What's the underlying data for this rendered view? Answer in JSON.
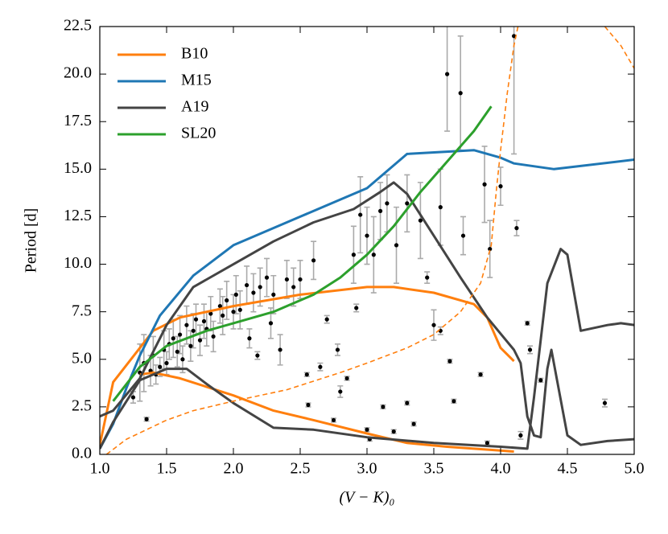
{
  "chart_data": {
    "type": "line",
    "xlabel": "(V − K)₀",
    "ylabel": "Period [d]",
    "xlim": [
      1.0,
      5.0
    ],
    "ylim": [
      0,
      22.5
    ],
    "xticks": [
      {
        "value": 1,
        "label": "1.0"
      },
      1.5,
      {
        "value": 2,
        "label": "2.0"
      },
      2.5,
      {
        "value": 3,
        "label": "3.0"
      },
      3.5,
      {
        "value": 4,
        "label": "4.0"
      },
      4.5,
      {
        "value": 5,
        "label": "5.0"
      }
    ],
    "yticks": [
      {
        "value": 0,
        "label": "0.0"
      },
      2.5,
      {
        "value": 5,
        "label": "5.0"
      },
      7.5,
      {
        "value": 10,
        "label": "10.0"
      },
      12.5,
      {
        "value": 15,
        "label": "15.0"
      },
      17.5,
      {
        "value": 20,
        "label": "20.0"
      },
      22.5
    ],
    "legend": "upper left",
    "series": [
      {
        "name": "B10",
        "color": "#ff7f0e",
        "x": [
          1.0,
          1.1,
          1.4,
          1.6,
          2.0,
          2.5,
          3.0,
          3.2,
          3.5,
          3.8,
          3.9,
          4.0,
          4.1,
          null,
          1.3,
          1.4,
          1.6,
          2.0,
          2.3,
          2.6,
          3.0,
          3.3,
          3.6,
          4.0,
          4.1
        ],
        "values": [
          0.5,
          3.8,
          6.5,
          7.2,
          7.8,
          8.4,
          8.8,
          8.8,
          8.5,
          7.9,
          7.2,
          5.6,
          4.9,
          null,
          4.2,
          4.3,
          4.0,
          3.1,
          2.3,
          1.8,
          1.1,
          0.6,
          0.4,
          0.2,
          0.15
        ]
      },
      {
        "name": "M15",
        "color": "#1f77b4",
        "x": [
          1.0,
          1.1,
          1.2,
          1.3,
          1.45,
          1.7,
          2.0,
          2.5,
          3.0,
          3.3,
          3.8,
          4.0,
          4.1,
          4.4,
          5.0
        ],
        "values": [
          0.3,
          1.6,
          3.5,
          5.2,
          7.3,
          9.4,
          11.0,
          12.5,
          14.0,
          15.8,
          16.0,
          15.6,
          15.3,
          15.0,
          15.5
        ]
      },
      {
        "name": "A19",
        "color": "#444444",
        "x": [
          1.0,
          1.1,
          1.3,
          1.5,
          1.7,
          2.0,
          2.3,
          2.6,
          2.9,
          3.1,
          3.2,
          3.3,
          3.5,
          3.7,
          3.9,
          4.1,
          4.15,
          4.2,
          4.25,
          4.3,
          4.35,
          4.38,
          4.42,
          4.5,
          4.6,
          4.8,
          5.0,
          null,
          1.0,
          1.1,
          1.3,
          1.5,
          1.65,
          1.8,
          2.0,
          2.3,
          2.6,
          3.0,
          3.5,
          4.0,
          4.2,
          4.25,
          4.3,
          4.35,
          4.45,
          4.5,
          4.6,
          4.8,
          4.9,
          5.0
        ],
        "values": [
          2.0,
          2.3,
          4.0,
          6.8,
          8.8,
          10.0,
          11.2,
          12.2,
          12.9,
          13.8,
          14.3,
          13.7,
          11.5,
          9.3,
          7.2,
          5.5,
          4.8,
          2.0,
          1.0,
          0.9,
          4.5,
          5.5,
          4.0,
          1.0,
          0.5,
          0.7,
          0.8,
          null,
          0.3,
          1.7,
          3.9,
          4.5,
          4.5,
          3.7,
          2.7,
          1.4,
          1.3,
          0.9,
          0.6,
          0.4,
          0.3,
          3.0,
          6.0,
          9.0,
          10.8,
          10.5,
          6.5,
          6.8,
          6.9,
          6.8
        ]
      },
      {
        "name": "SL20",
        "color": "#2ca02c",
        "x": [
          1.1,
          1.3,
          1.5,
          1.8,
          2.0,
          2.3,
          2.6,
          2.8,
          3.0,
          3.2,
          3.4,
          3.6,
          3.8,
          3.93
        ],
        "values": [
          2.8,
          4.6,
          5.7,
          6.5,
          6.9,
          7.5,
          8.4,
          9.3,
          10.5,
          12.0,
          13.8,
          15.4,
          17.0,
          18.3
        ]
      },
      {
        "color": "#ff7f0e",
        "style": "dashed",
        "x": [
          1.05,
          1.2,
          1.5,
          1.7,
          2.0,
          2.4,
          2.8,
          3.0,
          3.3,
          3.5,
          3.7,
          3.85,
          3.93,
          3.97,
          4.0,
          4.05,
          4.1,
          4.13,
          null,
          4.78,
          4.9,
          5.0
        ],
        "values": [
          0,
          0.8,
          1.8,
          2.3,
          2.8,
          3.4,
          4.3,
          4.8,
          5.6,
          6.3,
          7.5,
          9.0,
          11.0,
          14.0,
          16.0,
          19.0,
          21.5,
          22.5,
          null,
          22.5,
          21.5,
          20.3
        ]
      }
    ],
    "points": {
      "type": "scatter",
      "color": "#000000",
      "error_color": "#aaaaaa",
      "x": [
        1.25,
        1.3,
        1.33,
        1.35,
        1.38,
        1.4,
        1.42,
        1.45,
        1.48,
        1.5,
        1.52,
        1.55,
        1.58,
        1.6,
        1.62,
        1.65,
        1.68,
        1.7,
        1.72,
        1.75,
        1.78,
        1.8,
        1.83,
        1.85,
        1.9,
        1.92,
        1.95,
        2.0,
        2.02,
        2.05,
        2.1,
        2.12,
        2.15,
        2.18,
        2.2,
        2.25,
        2.28,
        2.3,
        2.35,
        2.4,
        2.45,
        2.5,
        2.55,
        2.56,
        2.6,
        2.65,
        2.7,
        2.75,
        2.78,
        2.8,
        2.85,
        2.9,
        2.92,
        2.95,
        3.0,
        3.0,
        3.02,
        3.05,
        3.1,
        3.12,
        3.15,
        3.2,
        3.22,
        3.3,
        3.3,
        3.35,
        3.4,
        3.45,
        3.5,
        3.55,
        3.55,
        3.6,
        3.62,
        3.65,
        3.7,
        3.72,
        3.85,
        3.88,
        3.9,
        3.92,
        4.0,
        4.1,
        4.12,
        4.15,
        4.2,
        4.22,
        4.3,
        4.78
      ],
      "values": [
        3.0,
        4.3,
        4.8,
        1.85,
        4.4,
        5.2,
        4.2,
        4.6,
        5.5,
        4.8,
        5.8,
        6.1,
        5.4,
        6.3,
        5.0,
        6.8,
        5.7,
        6.5,
        7.1,
        6.0,
        7.0,
        6.6,
        7.4,
        6.2,
        7.8,
        7.3,
        8.1,
        7.5,
        8.4,
        7.6,
        8.9,
        6.1,
        8.5,
        5.2,
        8.8,
        9.3,
        6.9,
        8.4,
        5.5,
        9.2,
        8.8,
        9.2,
        4.2,
        2.6,
        10.2,
        4.6,
        7.1,
        1.8,
        5.5,
        3.3,
        4.0,
        10.5,
        7.7,
        12.6,
        1.3,
        11.5,
        0.8,
        10.5,
        12.8,
        2.5,
        13.2,
        1.2,
        11.0,
        2.7,
        13.2,
        1.6,
        12.3,
        9.3,
        6.8,
        6.5,
        13.0,
        20.0,
        4.9,
        2.8,
        19.0,
        11.5,
        4.2,
        14.2,
        0.6,
        10.8,
        14.1,
        22.0,
        11.9,
        1.0,
        6.9,
        5.5,
        3.9,
        2.7
      ],
      "errors": [
        0.3,
        1.5,
        1.5,
        0.1,
        0.8,
        1.0,
        0.5,
        0.5,
        1.0,
        0.6,
        0.8,
        1.0,
        0.8,
        1.0,
        0.7,
        1.0,
        0.8,
        0.9,
        0.8,
        0.8,
        0.9,
        0.9,
        0.9,
        0.8,
        0.9,
        1.0,
        1.0,
        0.9,
        1.0,
        1.0,
        1.0,
        0.5,
        1.0,
        0.2,
        1.0,
        1.0,
        0.8,
        1.0,
        0.8,
        1.0,
        1.0,
        1.0,
        0.1,
        0.1,
        1.0,
        0.2,
        0.2,
        0.1,
        0.3,
        0.3,
        0.1,
        1.5,
        0.2,
        2.0,
        0.1,
        1.5,
        0.1,
        2.0,
        1.5,
        0.1,
        1.5,
        0.1,
        2.0,
        0.1,
        1.5,
        0.1,
        2.0,
        0.3,
        0.8,
        0.2,
        2.0,
        3.0,
        0.1,
        0.1,
        3.0,
        1.0,
        0.1,
        2.0,
        0.1,
        1.5,
        1.0,
        6.2,
        0.4,
        0.2,
        0.1,
        0.2,
        0.1,
        0.2
      ]
    }
  }
}
